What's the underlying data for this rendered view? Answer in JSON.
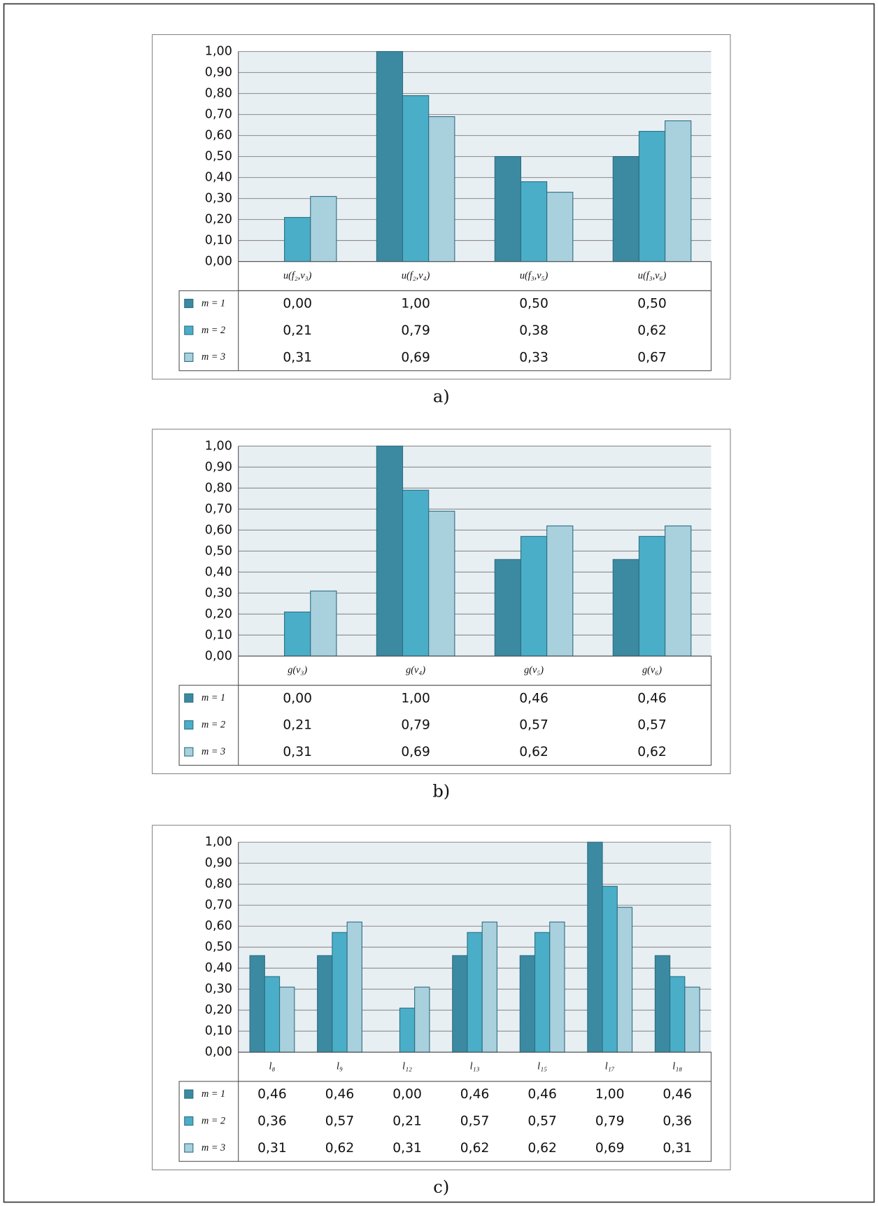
{
  "chart_data": [
    {
      "type": "bar",
      "caption": "a)",
      "categories": [
        "u(f₂,v₃)",
        "u(f₂,v₄)",
        "u(f₃,v₅)",
        "u(f₃,v₆)"
      ],
      "series": [
        {
          "name": "m = 1",
          "color": "#3b8aa1",
          "values": [
            0,
            1,
            0.5,
            0.5
          ],
          "value_labels": [
            "0,00",
            "1,00",
            "0,50",
            "0,50"
          ]
        },
        {
          "name": "m = 2",
          "color": "#4aaec8",
          "values": [
            0.21,
            0.79,
            0.38,
            0.62
          ],
          "value_labels": [
            "0,21",
            "0,79",
            "0,38",
            "0,62"
          ]
        },
        {
          "name": "m = 3",
          "color": "#a9d0dd",
          "values": [
            0.31,
            0.69,
            0.33,
            0.67
          ],
          "value_labels": [
            "0,31",
            "0,69",
            "0,33",
            "0,67"
          ]
        }
      ],
      "ylim": [
        0,
        1
      ],
      "yticks": [
        {
          "value": 0,
          "label": "0,00"
        },
        {
          "value": 0.1,
          "label": "0,10"
        },
        {
          "value": 0.2,
          "label": "0,20"
        },
        {
          "value": 0.3,
          "label": "0,30"
        },
        {
          "value": 0.4,
          "label": "0,40"
        },
        {
          "value": 0.5,
          "label": "0,50"
        },
        {
          "value": 0.6,
          "label": "0,60"
        },
        {
          "value": 0.7,
          "label": "0,70"
        },
        {
          "value": 0.8,
          "label": "0,80"
        },
        {
          "value": 0.9,
          "label": "0,90"
        },
        {
          "value": 1,
          "label": "1,00"
        }
      ],
      "grid": true
    },
    {
      "type": "bar",
      "caption": "b)",
      "categories": [
        "g(v₃)",
        "g(v₄)",
        "g(v₅)",
        "g(v₆)"
      ],
      "series": [
        {
          "name": "m = 1",
          "color": "#3b8aa1",
          "values": [
            0,
            1,
            0.46,
            0.46
          ],
          "value_labels": [
            "0,00",
            "1,00",
            "0,46",
            "0,46"
          ]
        },
        {
          "name": "m = 2",
          "color": "#4aaec8",
          "values": [
            0.21,
            0.79,
            0.57,
            0.57
          ],
          "value_labels": [
            "0,21",
            "0,79",
            "0,57",
            "0,57"
          ]
        },
        {
          "name": "m = 3",
          "color": "#a9d0dd",
          "values": [
            0.31,
            0.69,
            0.62,
            0.62
          ],
          "value_labels": [
            "0,31",
            "0,69",
            "0,62",
            "0,62"
          ]
        }
      ],
      "ylim": [
        0,
        1
      ],
      "yticks": [
        {
          "value": 0,
          "label": "0,00"
        },
        {
          "value": 0.1,
          "label": "0,10"
        },
        {
          "value": 0.2,
          "label": "0,20"
        },
        {
          "value": 0.3,
          "label": "0,30"
        },
        {
          "value": 0.4,
          "label": "0,40"
        },
        {
          "value": 0.5,
          "label": "0,50"
        },
        {
          "value": 0.6,
          "label": "0,60"
        },
        {
          "value": 0.7,
          "label": "0,70"
        },
        {
          "value": 0.8,
          "label": "0,80"
        },
        {
          "value": 0.9,
          "label": "0,90"
        },
        {
          "value": 1,
          "label": "1,00"
        }
      ],
      "grid": true
    },
    {
      "type": "bar",
      "caption": "c)",
      "categories": [
        "l₈",
        "l₉",
        "l₁₂",
        "l₁₃",
        "l₁₅",
        "l₁₇",
        "l₁₈"
      ],
      "series": [
        {
          "name": "m = 1",
          "color": "#3b8aa1",
          "values": [
            0.46,
            0.46,
            0,
            0.46,
            0.46,
            1,
            0.46
          ],
          "value_labels": [
            "0,46",
            "0,46",
            "0,00",
            "0,46",
            "0,46",
            "1,00",
            "0,46"
          ]
        },
        {
          "name": "m = 2",
          "color": "#4aaec8",
          "values": [
            0.36,
            0.57,
            0.21,
            0.57,
            0.57,
            0.79,
            0.36
          ],
          "value_labels": [
            "0,36",
            "0,57",
            "0,21",
            "0,57",
            "0,57",
            "0,79",
            "0,36"
          ]
        },
        {
          "name": "m = 3",
          "color": "#a9d0dd",
          "values": [
            0.31,
            0.62,
            0.31,
            0.62,
            0.62,
            0.69,
            0.31
          ],
          "value_labels": [
            "0,31",
            "0,62",
            "0,31",
            "0,62",
            "0,62",
            "0,69",
            "0,31"
          ]
        }
      ],
      "ylim": [
        0,
        1
      ],
      "yticks": [
        {
          "value": 0,
          "label": "0,00"
        },
        {
          "value": 0.1,
          "label": "0,10"
        },
        {
          "value": 0.2,
          "label": "0,20"
        },
        {
          "value": 0.3,
          "label": "0,30"
        },
        {
          "value": 0.4,
          "label": "0,40"
        },
        {
          "value": 0.5,
          "label": "0,50"
        },
        {
          "value": 0.6,
          "label": "0,60"
        },
        {
          "value": 0.7,
          "label": "0,70"
        },
        {
          "value": 0.8,
          "label": "0,80"
        },
        {
          "value": 0.9,
          "label": "0,90"
        },
        {
          "value": 1,
          "label": "1,00"
        }
      ],
      "grid": true
    }
  ]
}
